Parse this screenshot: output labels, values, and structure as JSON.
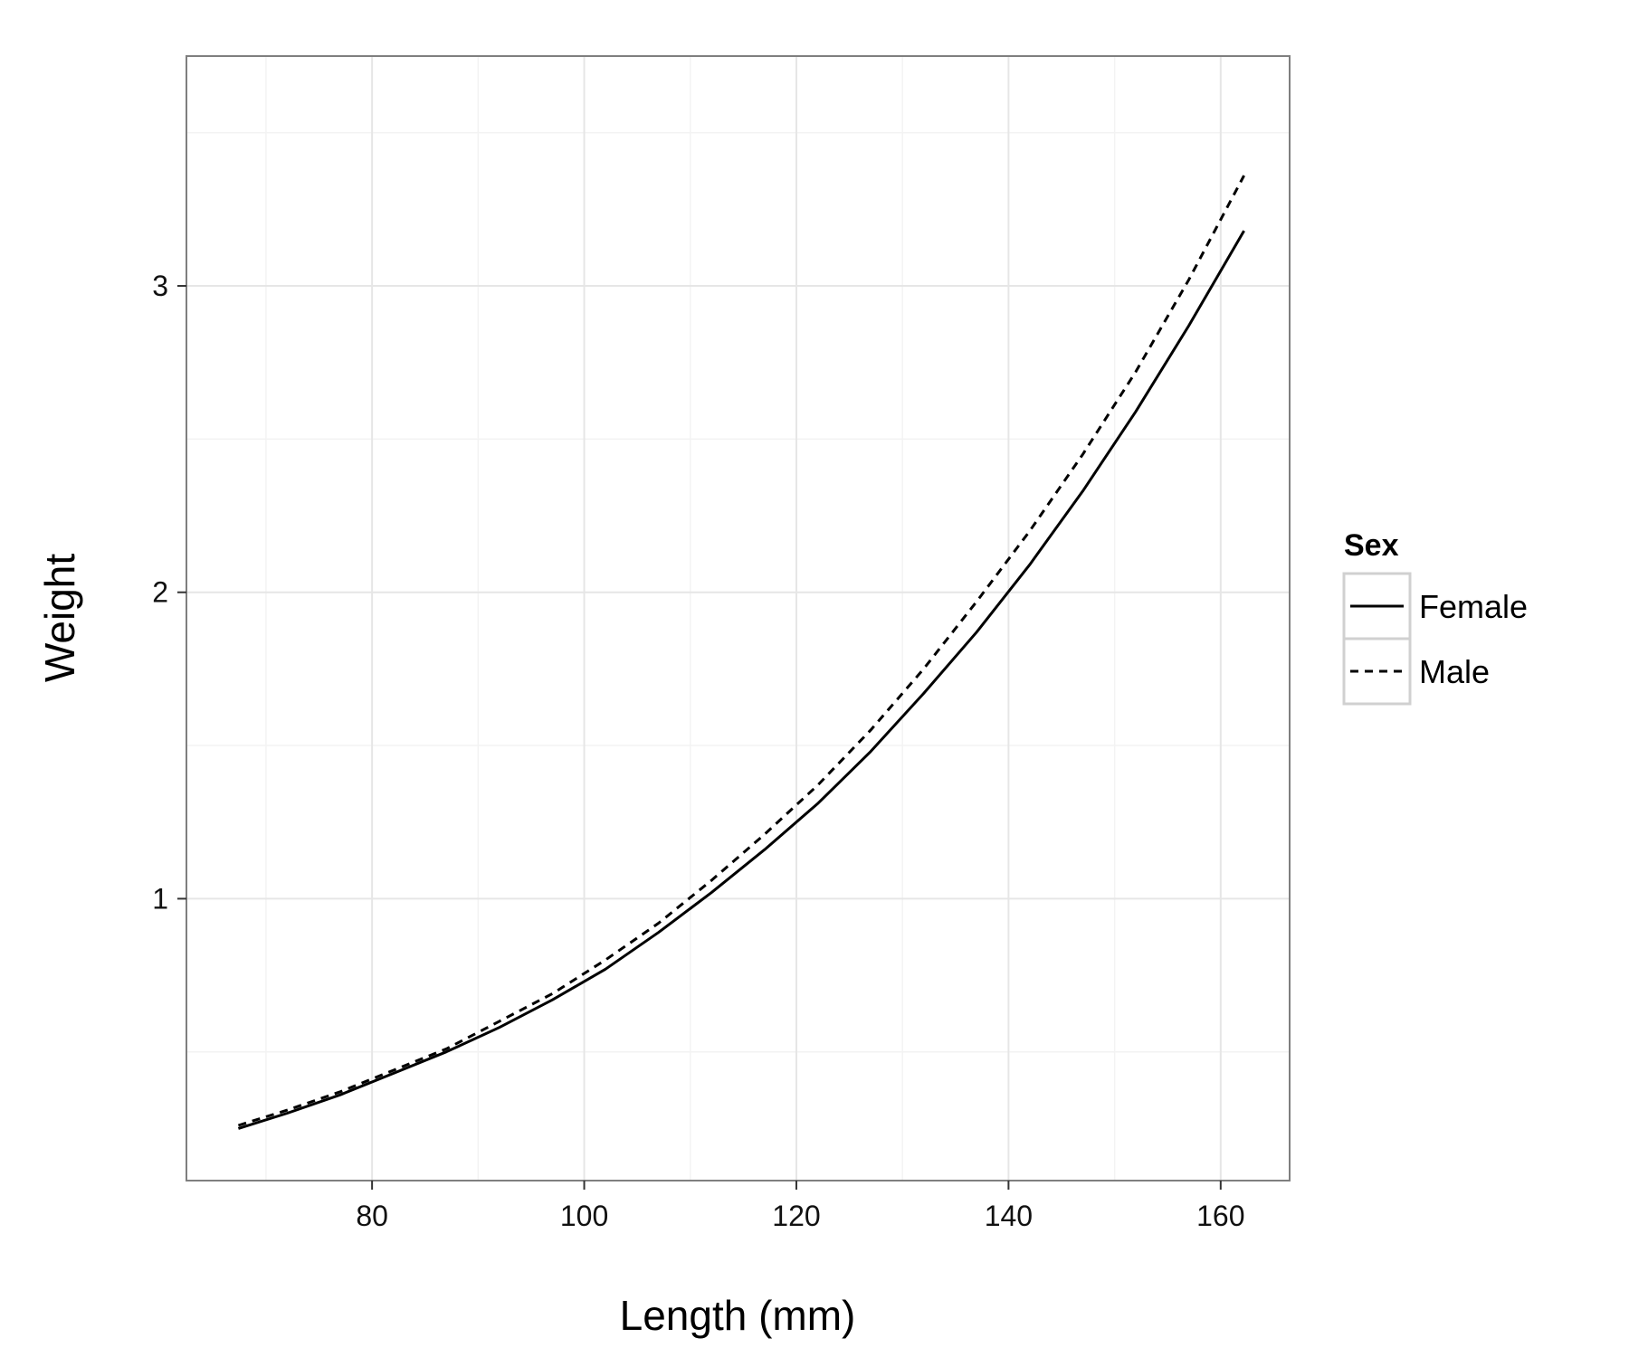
{
  "chart_data": {
    "type": "line",
    "xlabel": "Length (mm)",
    "ylabel": "Weight",
    "xlim": [
      62.5,
      166.5
    ],
    "ylim": [
      0.08,
      3.75
    ],
    "x_ticks": [
      80,
      100,
      120,
      140,
      160
    ],
    "y_ticks": [
      1,
      2,
      3
    ],
    "grid": true,
    "legend": {
      "title": "Sex",
      "position": "right"
    },
    "series": [
      {
        "name": "Female",
        "line_style": "solid",
        "color": "#000000",
        "x": [
          67.4,
          72,
          77,
          82,
          87,
          92,
          97,
          102,
          107,
          112,
          117,
          122,
          127,
          132,
          137,
          142,
          147,
          152,
          157,
          162.2
        ],
        "y": [
          0.25,
          0.3,
          0.36,
          0.43,
          0.5,
          0.58,
          0.67,
          0.77,
          0.89,
          1.02,
          1.16,
          1.31,
          1.48,
          1.67,
          1.87,
          2.09,
          2.33,
          2.59,
          2.87,
          3.18
        ]
      },
      {
        "name": "Male",
        "line_style": "dashed",
        "color": "#000000",
        "x": [
          67.4,
          72,
          77,
          82,
          87,
          92,
          97,
          102,
          107,
          112,
          117,
          122,
          127,
          132,
          137,
          142,
          147,
          152,
          157,
          162.2
        ],
        "y": [
          0.26,
          0.31,
          0.37,
          0.44,
          0.51,
          0.6,
          0.69,
          0.8,
          0.92,
          1.06,
          1.21,
          1.37,
          1.55,
          1.75,
          1.97,
          2.2,
          2.45,
          2.72,
          3.02,
          3.36
        ]
      }
    ]
  }
}
